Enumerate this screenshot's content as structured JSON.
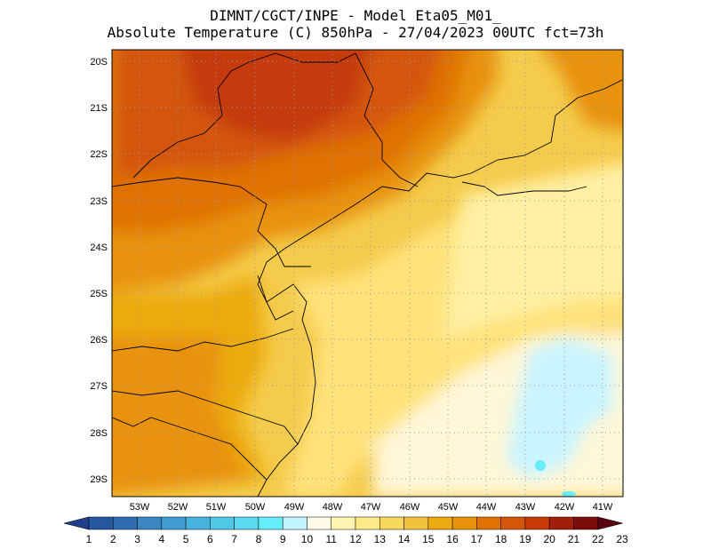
{
  "header": {
    "line1": "DIMNT/CGCT/INPE -  Model Eta05_M01_",
    "line2": "Absolute Temperature (C) 850hPa -  27/04/2023 00UTC fct=73h"
  },
  "map": {
    "lat_labels": [
      "20S",
      "21S",
      "22S",
      "23S",
      "24S",
      "25S",
      "26S",
      "27S",
      "28S",
      "29S"
    ],
    "lon_labels": [
      "53W",
      "52W",
      "51W",
      "50W",
      "49W",
      "48W",
      "47W",
      "46W",
      "45W",
      "44W",
      "43W",
      "42W",
      "41W"
    ],
    "grid": true
  },
  "colorbar": {
    "labels": [
      "1",
      "2",
      "3",
      "4",
      "5",
      "6",
      "7",
      "8",
      "9",
      "10",
      "11",
      "12",
      "13",
      "14",
      "15",
      "16",
      "17",
      "18",
      "19",
      "20",
      "21",
      "22",
      "23"
    ],
    "colors": [
      "#1f3e8c",
      "#27589f",
      "#2f6db0",
      "#3a86c2",
      "#3f9bd1",
      "#47b1df",
      "#50c8e8",
      "#5ad9ef",
      "#66eefa",
      "#bff5ff",
      "#fffbe8",
      "#fff4b0",
      "#ffea87",
      "#f8d85d",
      "#f1c23b",
      "#ecaa10",
      "#e89209",
      "#df7203",
      "#d4560a",
      "#c53a07",
      "#a31d0b",
      "#7d0d0d",
      "#5a0010"
    ]
  }
}
